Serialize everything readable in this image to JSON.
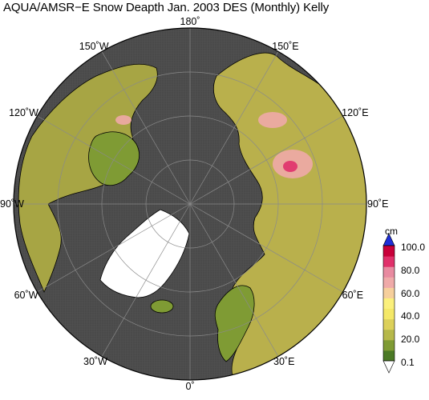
{
  "title": "AQUA/AMSR−E Snow Deapth  Jan.  2003 DES (Monthly) Kelly",
  "map": {
    "projection": "north-polar-stereographic",
    "ocean_color": "#4a4a4a",
    "ice_sheet_color": "#ffffff",
    "grid_color": "#8a8a8a",
    "coast_color": "#000000"
  },
  "longitude_labels": [
    {
      "text": "180˚",
      "lon": 180
    },
    {
      "text": "150˚E",
      "lon": 150
    },
    {
      "text": "120˚E",
      "lon": 120
    },
    {
      "text": "90˚E",
      "lon": 90
    },
    {
      "text": "60˚E",
      "lon": 60
    },
    {
      "text": "30˚E",
      "lon": 30
    },
    {
      "text": "0˚",
      "lon": 0
    },
    {
      "text": "30˚W",
      "lon": -30
    },
    {
      "text": "60˚W",
      "lon": -60
    },
    {
      "text": "90˚W",
      "lon": -90
    },
    {
      "text": "120˚W",
      "lon": -120
    },
    {
      "text": "150˚W",
      "lon": -150
    }
  ],
  "colorbar": {
    "unit": "cm",
    "ticks": [
      "100.0",
      "80.0",
      "60.0",
      "40.0",
      "20.0",
      "0.1"
    ],
    "colors": [
      "#4b7a26",
      "#7f9b34",
      "#b6b84a",
      "#dcd05a",
      "#f4e868",
      "#fbf07c",
      "#f6cf9c",
      "#efaaa9",
      "#e88aa0",
      "#e0306a",
      "#c8003a"
    ],
    "top_arrow_color": "#1f2fd8",
    "bottom_arrow_color": "#ffffff"
  }
}
